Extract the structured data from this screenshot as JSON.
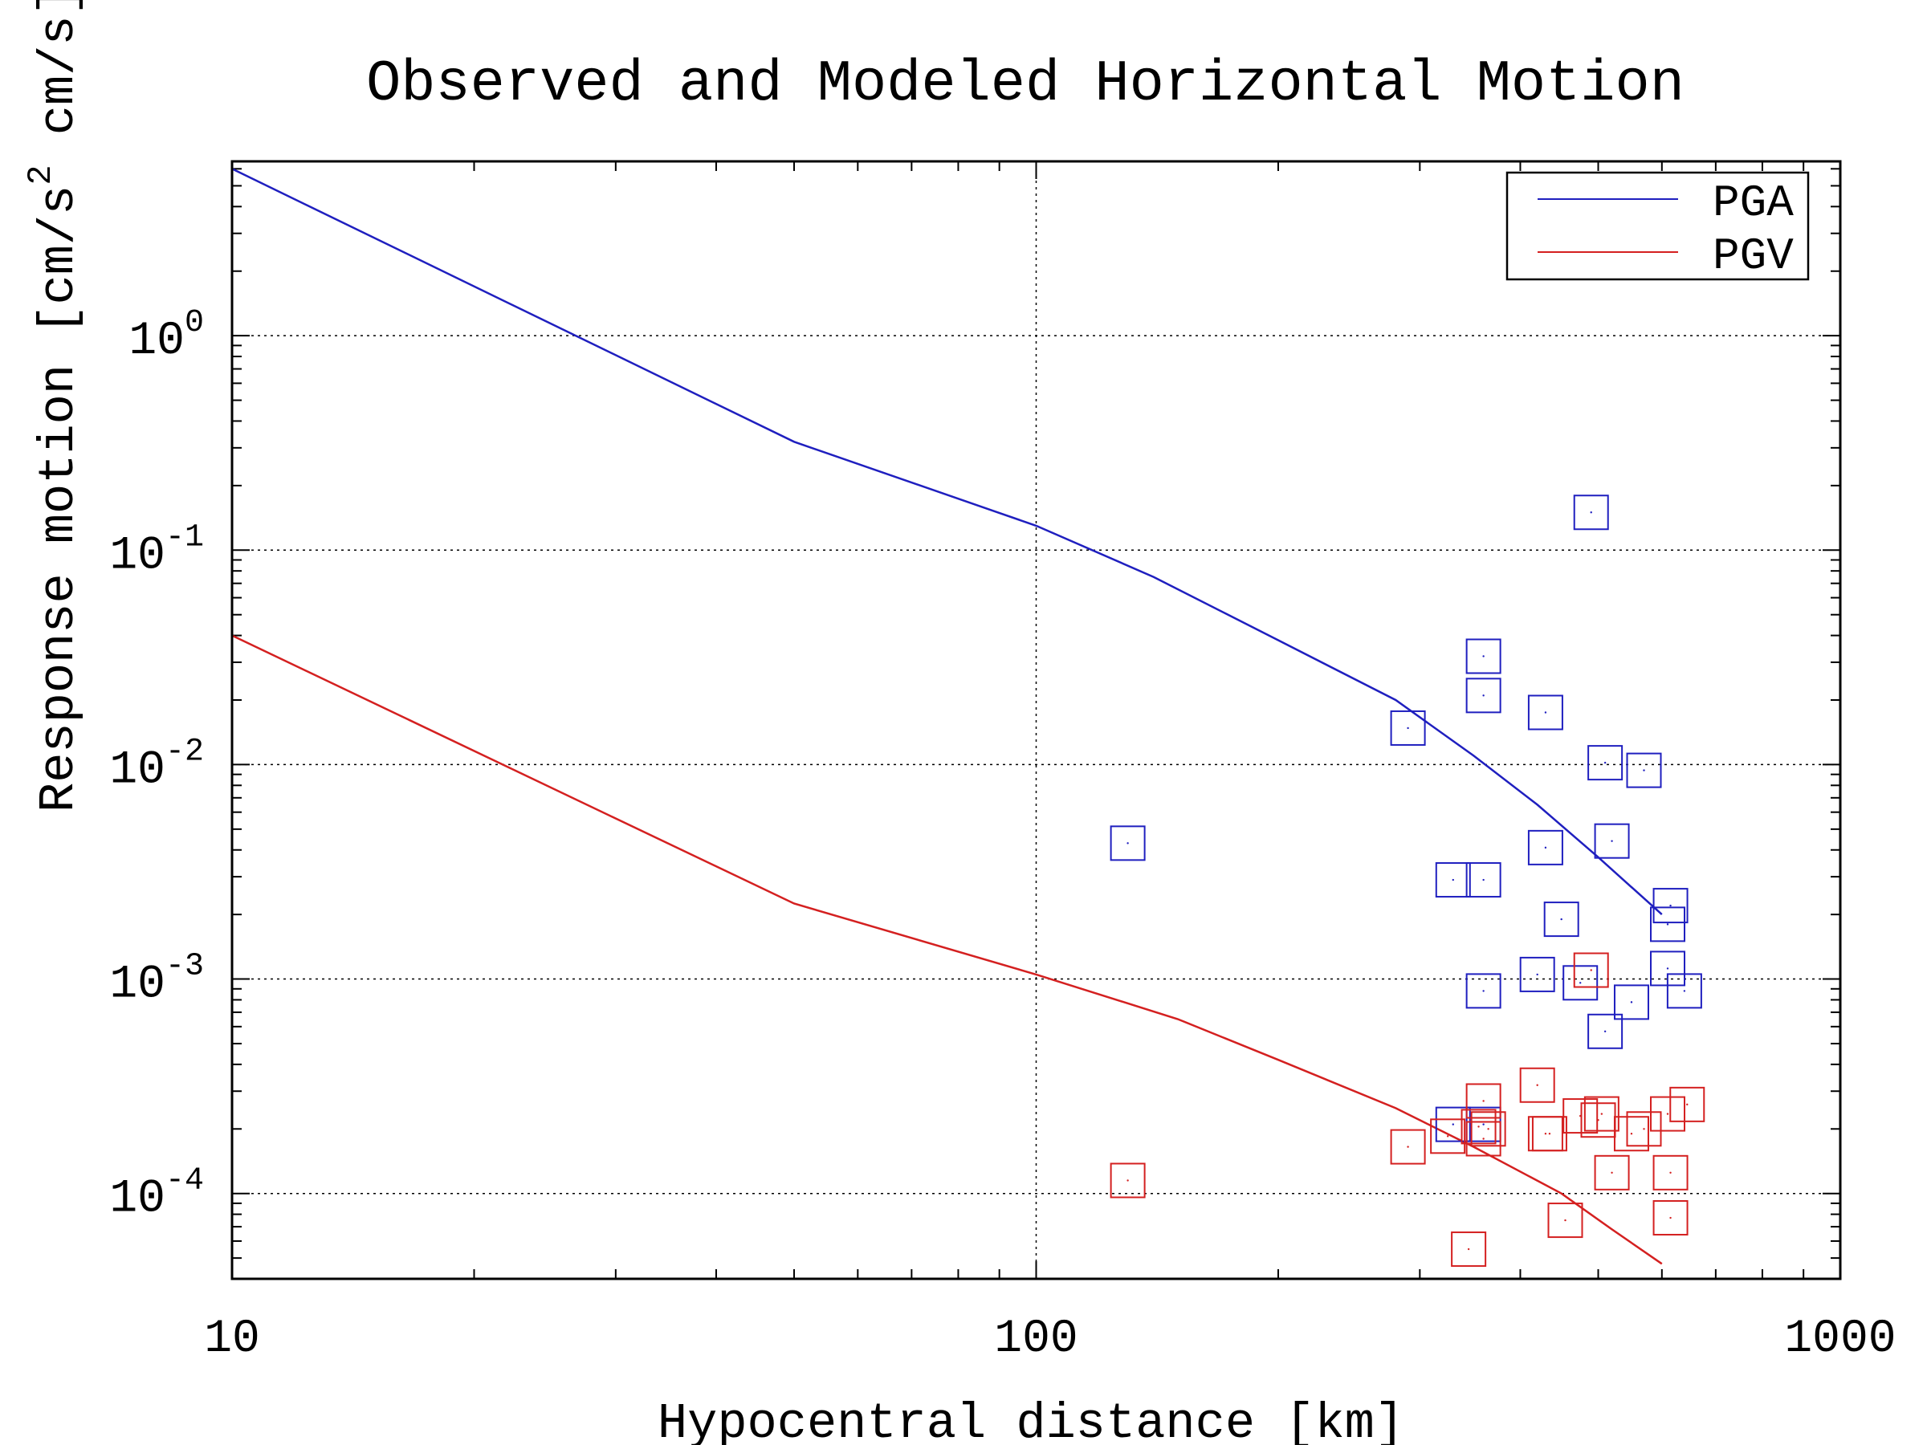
{
  "chart_data": {
    "type": "scatter",
    "title": "Observed and Modeled Horizontal Motion",
    "xlabel": "Hypocentral distance [km]",
    "ylabel_main": "Response motion [cm/s",
    "ylabel_sup": "2",
    "ylabel_tail": " cm/s]",
    "x_scale": "log",
    "y_scale": "log",
    "xlim": [
      10,
      1000
    ],
    "ylim": [
      4e-05,
      6.5
    ],
    "grid": true,
    "legend_position": "top-right",
    "x_ticks": [
      {
        "value": 10,
        "label": "10"
      },
      {
        "value": 100,
        "label": "100"
      },
      {
        "value": 1000,
        "label": "1000"
      }
    ],
    "y_ticks": [
      {
        "value": 1,
        "base": "10",
        "exp": "0"
      },
      {
        "value": 0.1,
        "base": "10",
        "exp": "-1"
      },
      {
        "value": 0.01,
        "base": "10",
        "exp": "-2"
      },
      {
        "value": 0.001,
        "base": "10",
        "exp": "-3"
      },
      {
        "value": 0.0001,
        "base": "10",
        "exp": "-4"
      }
    ],
    "model_lines": [
      {
        "name": "PGA",
        "color": "#1f1fbf",
        "points": [
          [
            10,
            6.0
          ],
          [
            50,
            0.32
          ],
          [
            100,
            0.13
          ],
          [
            140,
            0.075
          ],
          [
            200,
            0.038
          ],
          [
            280,
            0.02
          ],
          [
            350,
            0.011
          ],
          [
            420,
            0.0065
          ],
          [
            500,
            0.0037
          ],
          [
            600,
            0.002
          ]
        ]
      },
      {
        "name": "PGV",
        "color": "#d42020",
        "points": [
          [
            10,
            0.04
          ],
          [
            50,
            0.00225
          ],
          [
            100,
            0.00105
          ],
          [
            150,
            0.00065
          ],
          [
            200,
            0.00042
          ],
          [
            280,
            0.00025
          ],
          [
            350,
            0.000165
          ],
          [
            450,
            0.0001
          ],
          [
            520,
            6.8e-05
          ],
          [
            600,
            4.7e-05
          ]
        ]
      }
    ],
    "observed": [
      {
        "name": "PGA observed",
        "color": "#1f1fbf",
        "points": [
          [
            130,
            0.0043
          ],
          [
            290,
            0.0148
          ],
          [
            330,
            0.0029
          ],
          [
            360,
            0.0029
          ],
          [
            360,
            0.032
          ],
          [
            360,
            0.021
          ],
          [
            360,
            0.00088
          ],
          [
            330,
            0.00021
          ],
          [
            360,
            0.00021
          ],
          [
            420,
            0.00105
          ],
          [
            430,
            0.0041
          ],
          [
            430,
            0.0175
          ],
          [
            450,
            0.0019
          ],
          [
            475,
            0.00096
          ],
          [
            490,
            0.15
          ],
          [
            510,
            0.0102
          ],
          [
            510,
            0.00057
          ],
          [
            520,
            0.0044
          ],
          [
            550,
            0.00078
          ],
          [
            570,
            0.0094
          ],
          [
            610,
            0.0018
          ],
          [
            615,
            0.0022
          ],
          [
            610,
            0.00112
          ],
          [
            640,
            0.00088
          ]
        ]
      },
      {
        "name": "PGV observed",
        "color": "#d42020",
        "points": [
          [
            130,
            0.000115
          ],
          [
            290,
            0.000165
          ],
          [
            325,
            0.000185
          ],
          [
            345,
            5.5e-05
          ],
          [
            355,
            0.000205
          ],
          [
            360,
            0.00027
          ],
          [
            360,
            0.00018
          ],
          [
            365,
            0.0002
          ],
          [
            420,
            0.00032
          ],
          [
            430,
            0.00019
          ],
          [
            435,
            0.00019
          ],
          [
            455,
            7.5e-05
          ],
          [
            475,
            0.00023
          ],
          [
            490,
            0.0011
          ],
          [
            500,
            0.00022
          ],
          [
            505,
            0.000235
          ],
          [
            520,
            0.000125
          ],
          [
            550,
            0.00019
          ],
          [
            570,
            0.0002
          ],
          [
            610,
            0.000235
          ],
          [
            615,
            0.000125
          ],
          [
            615,
            7.7e-05
          ],
          [
            645,
            0.00026
          ]
        ]
      }
    ],
    "legend": [
      {
        "label": "PGA",
        "color": "#1f1fbf"
      },
      {
        "label": "PGV",
        "color": "#d42020"
      }
    ]
  }
}
